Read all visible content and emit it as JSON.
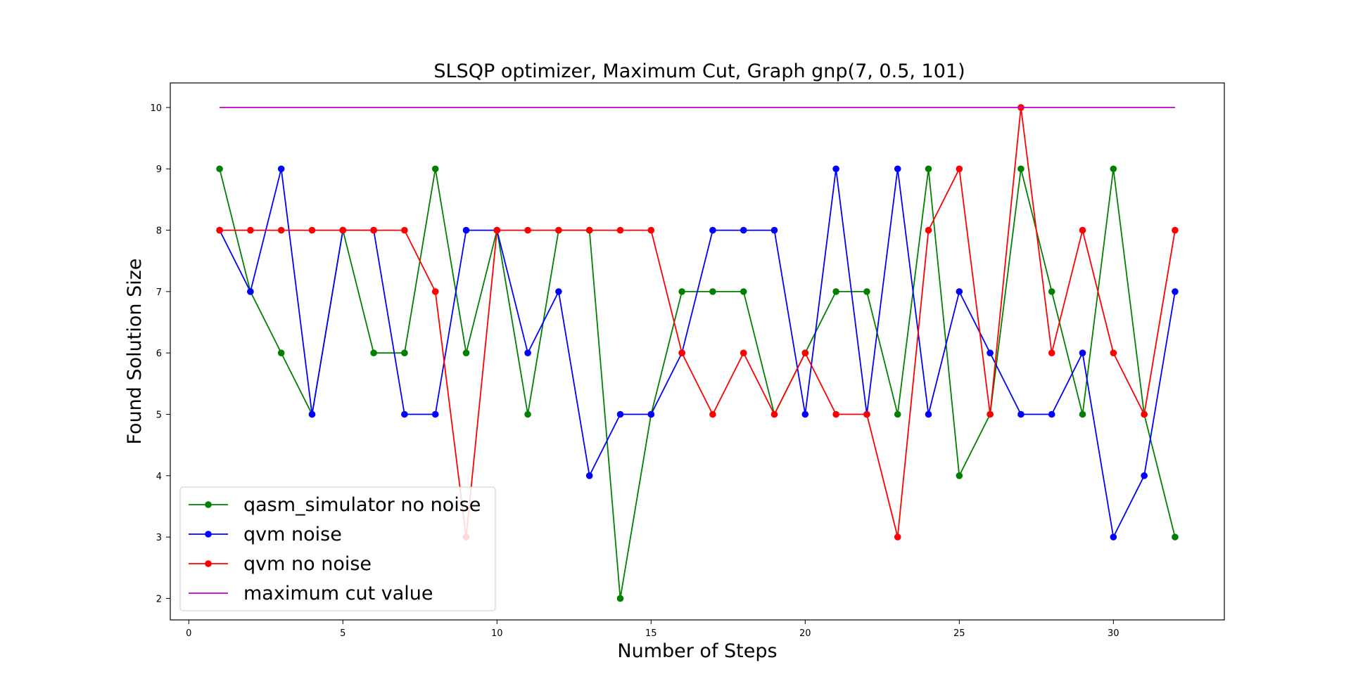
{
  "chart_data": {
    "type": "line",
    "title": "SLSQP optimizer, Maximum Cut, Graph gnp(7, 0.5, 101)",
    "xlabel": "Number of Steps",
    "ylabel": "Found Solution Size",
    "xlim": [
      -0.6,
      33.6
    ],
    "ylim": [
      1.65,
      10.4
    ],
    "xticks": [
      0,
      5,
      10,
      15,
      20,
      25,
      30
    ],
    "yticks": [
      2,
      3,
      4,
      5,
      6,
      7,
      8,
      9,
      10
    ],
    "grid": false,
    "legend_position": "lower-left",
    "x": [
      1,
      2,
      3,
      4,
      5,
      6,
      7,
      8,
      9,
      10,
      11,
      12,
      13,
      14,
      15,
      16,
      17,
      18,
      19,
      20,
      21,
      22,
      23,
      24,
      25,
      26,
      27,
      28,
      29,
      30,
      31,
      32
    ],
    "series": [
      {
        "name": "qasm_simulator no noise",
        "color": "#008000",
        "marker": true,
        "values": [
          9,
          7,
          6,
          5,
          8,
          6,
          6,
          9,
          6,
          8,
          5,
          8,
          8,
          2,
          5,
          7,
          7,
          7,
          5,
          6,
          7,
          7,
          5,
          9,
          4,
          5,
          9,
          7,
          5,
          9,
          5,
          3
        ]
      },
      {
        "name": "qvm noise",
        "color": "#0000ff",
        "marker": true,
        "values": [
          8,
          7,
          9,
          5,
          8,
          8,
          5,
          5,
          8,
          8,
          6,
          7,
          4,
          5,
          5,
          6,
          8,
          8,
          8,
          5,
          9,
          5,
          9,
          5,
          7,
          6,
          5,
          5,
          6,
          3,
          4,
          7
        ]
      },
      {
        "name": "qvm no noise",
        "color": "#ff0000",
        "marker": true,
        "values": [
          8,
          8,
          8,
          8,
          8,
          8,
          8,
          7,
          3,
          8,
          8,
          8,
          8,
          8,
          8,
          6,
          5,
          6,
          5,
          6,
          5,
          5,
          3,
          8,
          9,
          5,
          10,
          6,
          8,
          6,
          5,
          8
        ]
      },
      {
        "name": "maximum cut value",
        "color": "#bf00bf",
        "marker": false,
        "values": [
          10,
          10,
          10,
          10,
          10,
          10,
          10,
          10,
          10,
          10,
          10,
          10,
          10,
          10,
          10,
          10,
          10,
          10,
          10,
          10,
          10,
          10,
          10,
          10,
          10,
          10,
          10,
          10,
          10,
          10,
          10,
          10
        ]
      }
    ]
  }
}
